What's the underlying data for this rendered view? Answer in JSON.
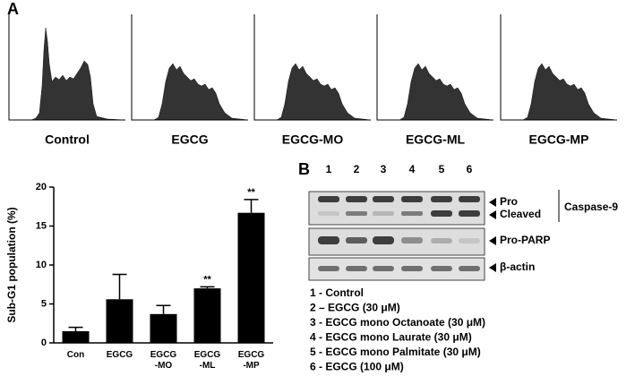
{
  "panel_labels": [
    "A",
    "B"
  ],
  "histograms": {
    "labels": [
      "Control",
      "EGCG",
      "EGCG-MO",
      "EGCG-ML",
      "EGCG-MP"
    ]
  },
  "chart_data": {
    "type": "bar",
    "ylabel": "Sub-G1 population (%)",
    "categories": [
      "Con",
      "EGCG",
      "EGCG\n-MO",
      "EGCG\n-ML",
      "EGCG\n-MP"
    ],
    "values": [
      1.5,
      5.6,
      3.7,
      7.0,
      16.7
    ],
    "errors": [
      0.5,
      3.2,
      1.1,
      0.2,
      1.7
    ],
    "value_annotations": [
      null,
      null,
      null,
      "**",
      "**"
    ],
    "color": "#000000",
    "ylim": [
      0,
      20
    ],
    "yticks": [
      0,
      5,
      10,
      15,
      20
    ]
  },
  "blot": {
    "lanes": [
      1,
      2,
      3,
      4,
      5,
      6
    ],
    "band_labels": [
      "Pro",
      "Cleaved",
      "Pro-PARP",
      "β-actin"
    ],
    "group_label": "Caspase-9",
    "legend": [
      "1 - Control",
      "2 – EGCG (30 μM)",
      "3 - EGCG mono Octanoate (30 μM)",
      "4 - EGCG mono Laurate (30 μM)",
      "5 - EGCG mono Palmitate (30 μM)",
      "6 - EGCG (100 μM)"
    ]
  }
}
